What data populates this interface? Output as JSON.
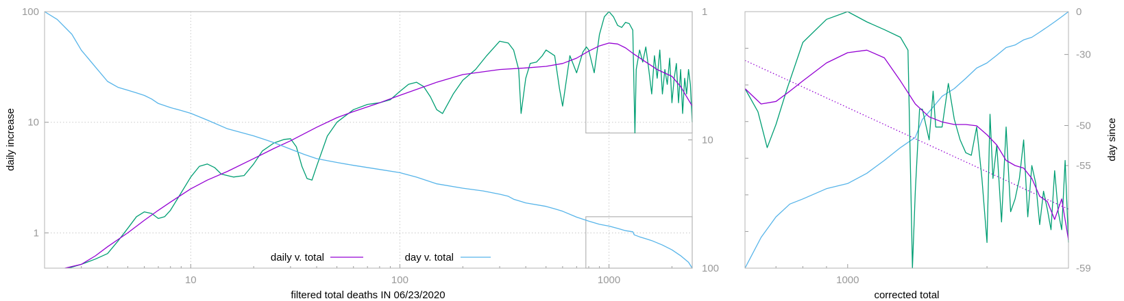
{
  "colors": {
    "daily": "#9400d3",
    "smooth": "#009e73",
    "day": "#56b4e9",
    "grid": "#c8c8c8",
    "frame": "#b3b3b3",
    "tick": "#999999"
  },
  "chart_data": [
    {
      "type": "line",
      "xlabel": "filtered total deaths IN 06/23/2020",
      "ylabel": "daily increase",
      "xscale": "log",
      "yscale": "log",
      "xlim": [
        2,
        2500
      ],
      "ylim": [
        0.48,
        100
      ],
      "y2lim": [
        1,
        100
      ],
      "y2scale": "log-reversed",
      "x_ticks": [
        10,
        100,
        1000
      ],
      "x_tick_labels": [
        "10",
        "100",
        "1000"
      ],
      "y_ticks": [
        1,
        10,
        100
      ],
      "y_tick_labels": [
        "1",
        "10",
        "100"
      ],
      "y2_ticks": [
        1,
        10,
        100
      ],
      "y2_tick_labels": [
        "1",
        "10",
        "100"
      ],
      "grid": true,
      "legend": {
        "placement": "bottom-center",
        "entries": [
          "daily v. total",
          "day v. total"
        ]
      },
      "zoom_markers": [
        {
          "x": [
            775,
            2500
          ],
          "y": [
            8,
            100
          ]
        },
        {
          "x": [
            775,
            2500
          ],
          "y": [
            0.48,
            1.4
          ]
        }
      ],
      "series": [
        {
          "name": "daily v. total",
          "color_key": "daily",
          "x": [
            2.5,
            3,
            3.5,
            4,
            5,
            6,
            7,
            8,
            10,
            12,
            15,
            20,
            25,
            30,
            40,
            50,
            60,
            80,
            100,
            150,
            200,
            300,
            400,
            500,
            600,
            700,
            800,
            900,
            1000,
            1100,
            1200,
            1300,
            1500,
            1700,
            2000,
            2200,
            2500
          ],
          "y": [
            0.48,
            0.52,
            0.62,
            0.75,
            1.0,
            1.3,
            1.6,
            1.9,
            2.5,
            3.0,
            3.6,
            4.7,
            5.8,
            6.8,
            9.0,
            11,
            12.5,
            15,
            17.5,
            23,
            27,
            30,
            31,
            32,
            34,
            38,
            44,
            49,
            52,
            51,
            47,
            42,
            35,
            30,
            26,
            21,
            14
          ]
        },
        {
          "name": "",
          "color_key": "smooth",
          "x": [
            2.6,
            3,
            3.5,
            4,
            4.5,
            5,
            5.5,
            6,
            6.5,
            7,
            7.5,
            8,
            9,
            10,
            11,
            12,
            13,
            14,
            16,
            18,
            20,
            22,
            25,
            28,
            30,
            32,
            34,
            36,
            38,
            40,
            45,
            50,
            60,
            70,
            80,
            90,
            100,
            110,
            120,
            130,
            140,
            150,
            160,
            180,
            200,
            230,
            260,
            300,
            330,
            350,
            370,
            380,
            400,
            420,
            450,
            480,
            500,
            550,
            580,
            600,
            650,
            700,
            750,
            780,
            800,
            850,
            900,
            950,
            1000,
            1050,
            1100,
            1150,
            1200,
            1250,
            1300,
            1330,
            1350,
            1400,
            1450,
            1500,
            1550,
            1600,
            1650,
            1700,
            1750,
            1800,
            1850,
            1900,
            1950,
            2000,
            2050,
            2100,
            2150,
            2200,
            2250,
            2300,
            2350,
            2400,
            2450,
            2500
          ],
          "y": [
            0.48,
            0.52,
            0.58,
            0.65,
            0.85,
            1.1,
            1.4,
            1.55,
            1.5,
            1.35,
            1.4,
            1.6,
            2.3,
            3.2,
            4.0,
            4.2,
            3.9,
            3.4,
            3.2,
            3.3,
            4.2,
            5.5,
            6.5,
            7.0,
            7.1,
            6.0,
            4.0,
            3.1,
            3.0,
            4.0,
            7.5,
            10,
            13,
            14.5,
            15,
            16,
            19,
            22,
            23,
            21,
            17,
            13,
            12,
            18,
            24,
            30,
            40,
            54,
            52,
            45,
            30,
            12,
            25,
            34,
            35,
            40,
            45,
            40,
            20,
            14,
            40,
            28,
            43,
            48,
            45,
            28,
            62,
            90,
            100,
            90,
            75,
            72,
            80,
            78,
            68,
            8,
            30,
            45,
            35,
            48,
            30,
            18,
            40,
            25,
            45,
            18,
            30,
            22,
            38,
            15,
            25,
            34,
            15,
            30,
            12,
            25,
            18,
            30,
            22,
            10
          ]
        },
        {
          "name": "day v. total",
          "color_key": "day",
          "x": [
            2,
            2.3,
            2.7,
            3,
            3.5,
            4,
            4.5,
            5,
            5.5,
            6,
            6.5,
            7,
            8,
            9,
            10,
            12,
            15,
            20,
            25,
            30,
            35,
            40,
            50,
            60,
            80,
            100,
            120,
            150,
            200,
            250,
            300,
            330,
            350,
            400,
            500,
            550,
            600,
            700,
            800,
            900,
            1000,
            1100,
            1200,
            1300,
            1320,
            1400,
            1500,
            1600,
            1800,
            2000,
            2200,
            2400,
            2500
          ],
          "y2": [
            1,
            1.15,
            1.5,
            2,
            2.7,
            3.5,
            3.9,
            4.1,
            4.3,
            4.5,
            4.8,
            5.2,
            5.6,
            5.9,
            6.2,
            7,
            8.2,
            9.3,
            10.5,
            11.8,
            13,
            14,
            15,
            15.8,
            17,
            18,
            19.5,
            22,
            23.8,
            25,
            26.5,
            27.5,
            29,
            31,
            33,
            34.5,
            36,
            40,
            43,
            45.5,
            47,
            49,
            51,
            52,
            55,
            57,
            59,
            61,
            66,
            72,
            80,
            90,
            100
          ]
        }
      ]
    },
    {
      "type": "line",
      "xlabel": "corrected total",
      "ylabel": "day since",
      "xscale": "log",
      "xlim": [
        600,
        3000
      ],
      "x_ticks": [
        1000
      ],
      "x_tick_labels": [
        "1000"
      ],
      "ylim": [
        0,
        1
      ],
      "y2_ticks": [
        0,
        -30,
        -50,
        -55,
        -59
      ],
      "y2_tick_labels": [
        "0",
        "-30",
        "-50",
        "-55",
        "-59"
      ],
      "y2_tick_levels": [
        1.0,
        0.833,
        0.556,
        0.4,
        0.0
      ],
      "series": [
        {
          "name": "",
          "color_key": "daily",
          "x": [
            600,
            650,
            700,
            750,
            800,
            900,
            1000,
            1100,
            1200,
            1300,
            1400,
            1500,
            1600,
            1700,
            1800,
            1900,
            2000,
            2100,
            2200,
            2300,
            2400,
            2500,
            2600,
            2700,
            2800,
            2900,
            3000
          ],
          "y": [
            0.7,
            0.64,
            0.65,
            0.69,
            0.73,
            0.8,
            0.84,
            0.85,
            0.82,
            0.73,
            0.64,
            0.59,
            0.57,
            0.56,
            0.56,
            0.555,
            0.52,
            0.48,
            0.42,
            0.4,
            0.39,
            0.35,
            0.28,
            0.26,
            0.19,
            0.27,
            0.11
          ]
        },
        {
          "name": "",
          "color_key": "smooth",
          "x": [
            600,
            640,
            670,
            700,
            740,
            800,
            900,
            1000,
            1100,
            1200,
            1300,
            1350,
            1370,
            1380,
            1400,
            1430,
            1450,
            1500,
            1530,
            1550,
            1600,
            1650,
            1700,
            1750,
            1800,
            1850,
            1900,
            1950,
            2000,
            2030,
            2060,
            2100,
            2150,
            2200,
            2250,
            2300,
            2350,
            2400,
            2450,
            2500,
            2550,
            2600,
            2650,
            2700,
            2750,
            2800,
            2850,
            2900,
            2950,
            3000
          ],
          "y": [
            0.7,
            0.61,
            0.47,
            0.56,
            0.7,
            0.88,
            0.97,
            1.0,
            0.96,
            0.93,
            0.9,
            0.85,
            0.3,
            0.0,
            0.3,
            0.62,
            0.62,
            0.5,
            0.69,
            0.55,
            0.55,
            0.72,
            0.58,
            0.5,
            0.45,
            0.44,
            0.55,
            0.35,
            0.1,
            0.6,
            0.35,
            0.48,
            0.18,
            0.55,
            0.22,
            0.27,
            0.35,
            0.5,
            0.2,
            0.4,
            0.33,
            0.17,
            0.3,
            0.23,
            0.15,
            0.38,
            0.22,
            0.15,
            0.42,
            0.1
          ]
        },
        {
          "name": "",
          "color_key": "day",
          "x": [
            600,
            650,
            700,
            750,
            800,
            900,
            1000,
            1100,
            1200,
            1300,
            1400,
            1450,
            1500,
            1550,
            1600,
            1700,
            1800,
            1900,
            2000,
            2100,
            2200,
            2300,
            2400,
            2500,
            2600,
            2700,
            2800,
            2900,
            3000
          ],
          "y": [
            0.0,
            0.12,
            0.2,
            0.25,
            0.27,
            0.31,
            0.33,
            0.37,
            0.42,
            0.47,
            0.51,
            0.58,
            0.61,
            0.64,
            0.67,
            0.7,
            0.74,
            0.78,
            0.8,
            0.83,
            0.86,
            0.87,
            0.89,
            0.9,
            0.92,
            0.94,
            0.96,
            0.98,
            1.0
          ]
        },
        {
          "name": "",
          "color_key": "daily",
          "style": "dotted",
          "x": [
            600,
            3000
          ],
          "y": [
            0.81,
            0.23
          ]
        }
      ]
    }
  ]
}
